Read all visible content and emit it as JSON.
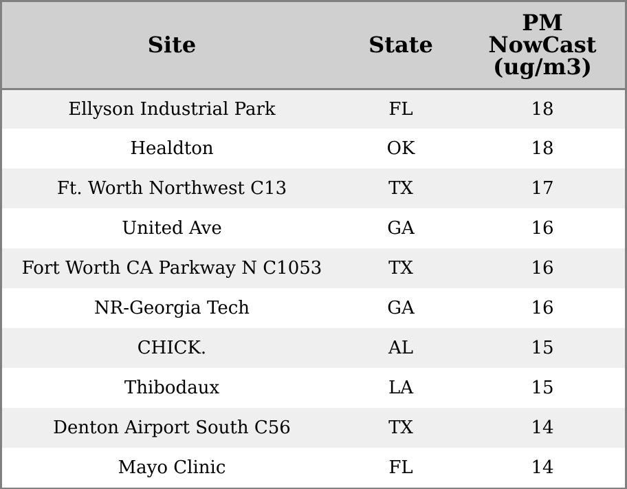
{
  "chart_data": {
    "type": "table",
    "columns": [
      "Site",
      "State",
      "PM NowCast (ug/m3)"
    ],
    "header_lines": {
      "site": "Site",
      "state": "State",
      "pm": [
        "PM",
        "NowCast",
        "(ug/m3)"
      ]
    },
    "rows": [
      {
        "site": "Ellyson Industrial Park",
        "state": "FL",
        "pm": "18"
      },
      {
        "site": "Healdton",
        "state": "OK",
        "pm": "18"
      },
      {
        "site": "Ft. Worth Northwest C13",
        "state": "TX",
        "pm": "17"
      },
      {
        "site": "United Ave",
        "state": "GA",
        "pm": "16"
      },
      {
        "site": "Fort Worth CA Parkway N C1053",
        "state": "TX",
        "pm": "16"
      },
      {
        "site": "NR-Georgia Tech",
        "state": "GA",
        "pm": "16"
      },
      {
        "site": "CHICK.",
        "state": "AL",
        "pm": "15"
      },
      {
        "site": "Thibodaux",
        "state": "LA",
        "pm": "15"
      },
      {
        "site": "Denton Airport South C56",
        "state": "TX",
        "pm": "14"
      },
      {
        "site": "Mayo Clinic",
        "state": "FL",
        "pm": "14"
      }
    ]
  },
  "colors": {
    "header_bg": "#d0d0d0",
    "row_alt_bg": "#efefef",
    "row_bg": "#ffffff",
    "border": "#808080"
  }
}
